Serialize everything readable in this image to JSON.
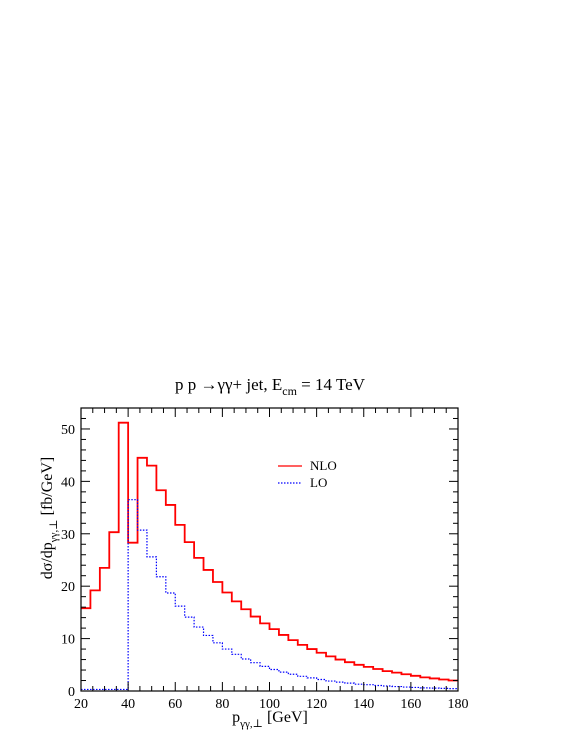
{
  "chart_data": {
    "type": "line",
    "title_parts": {
      "a": "p p →γγ+ jet, E",
      "sub": "cm",
      "b": " = 14 TeV"
    },
    "xlabel_parts": {
      "main": "p",
      "sub": "γγ,⊥",
      "rest": " [GeV]"
    },
    "ylabel_parts": {
      "main": "dσ/dp",
      "sub": "γγ,⊥",
      "rest": " [fb/GeV]"
    },
    "xlim": [
      20,
      180
    ],
    "ylim": [
      0,
      54
    ],
    "x_ticks": [
      "20",
      "40",
      "60",
      "80",
      "100",
      "120",
      "140",
      "160",
      "180"
    ],
    "y_ticks": [
      "0",
      "10",
      "20",
      "30",
      "40",
      "50"
    ],
    "legend_position": "upper-right",
    "bin_edges": [
      20,
      24,
      28,
      32,
      36,
      40,
      44,
      48,
      52,
      56,
      60,
      64,
      68,
      72,
      76,
      80,
      84,
      88,
      92,
      96,
      100,
      104,
      108,
      112,
      116,
      120,
      124,
      128,
      132,
      136,
      140,
      144,
      148,
      152,
      156,
      160,
      164,
      168,
      172,
      176,
      180
    ],
    "series": [
      {
        "name": "NLO",
        "color": "#ff0000",
        "style": "solid",
        "values": [
          15.8,
          19.2,
          23.5,
          30.3,
          51.2,
          28.3,
          44.5,
          43.0,
          38.3,
          35.5,
          31.7,
          28.4,
          25.4,
          23.1,
          20.8,
          18.8,
          17.1,
          15.6,
          14.2,
          12.9,
          11.8,
          10.7,
          9.7,
          8.8,
          8.0,
          7.3,
          6.6,
          6.0,
          5.5,
          5.0,
          4.6,
          4.2,
          3.8,
          3.5,
          3.2,
          2.9,
          2.6,
          2.4,
          2.2,
          2.0
        ]
      },
      {
        "name": "LO",
        "color": "#0000ff",
        "style": "dotted",
        "values": [
          0.3,
          0.3,
          0.3,
          0.3,
          0.3,
          36.5,
          30.7,
          25.6,
          21.8,
          18.7,
          16.2,
          14.1,
          12.2,
          10.6,
          9.2,
          8.0,
          7.0,
          6.1,
          5.4,
          4.7,
          4.1,
          3.6,
          3.2,
          2.8,
          2.5,
          2.2,
          1.9,
          1.7,
          1.5,
          1.3,
          1.2,
          1.05,
          0.95,
          0.85,
          0.75,
          0.68,
          0.6,
          0.55,
          0.5,
          0.45
        ]
      }
    ]
  }
}
